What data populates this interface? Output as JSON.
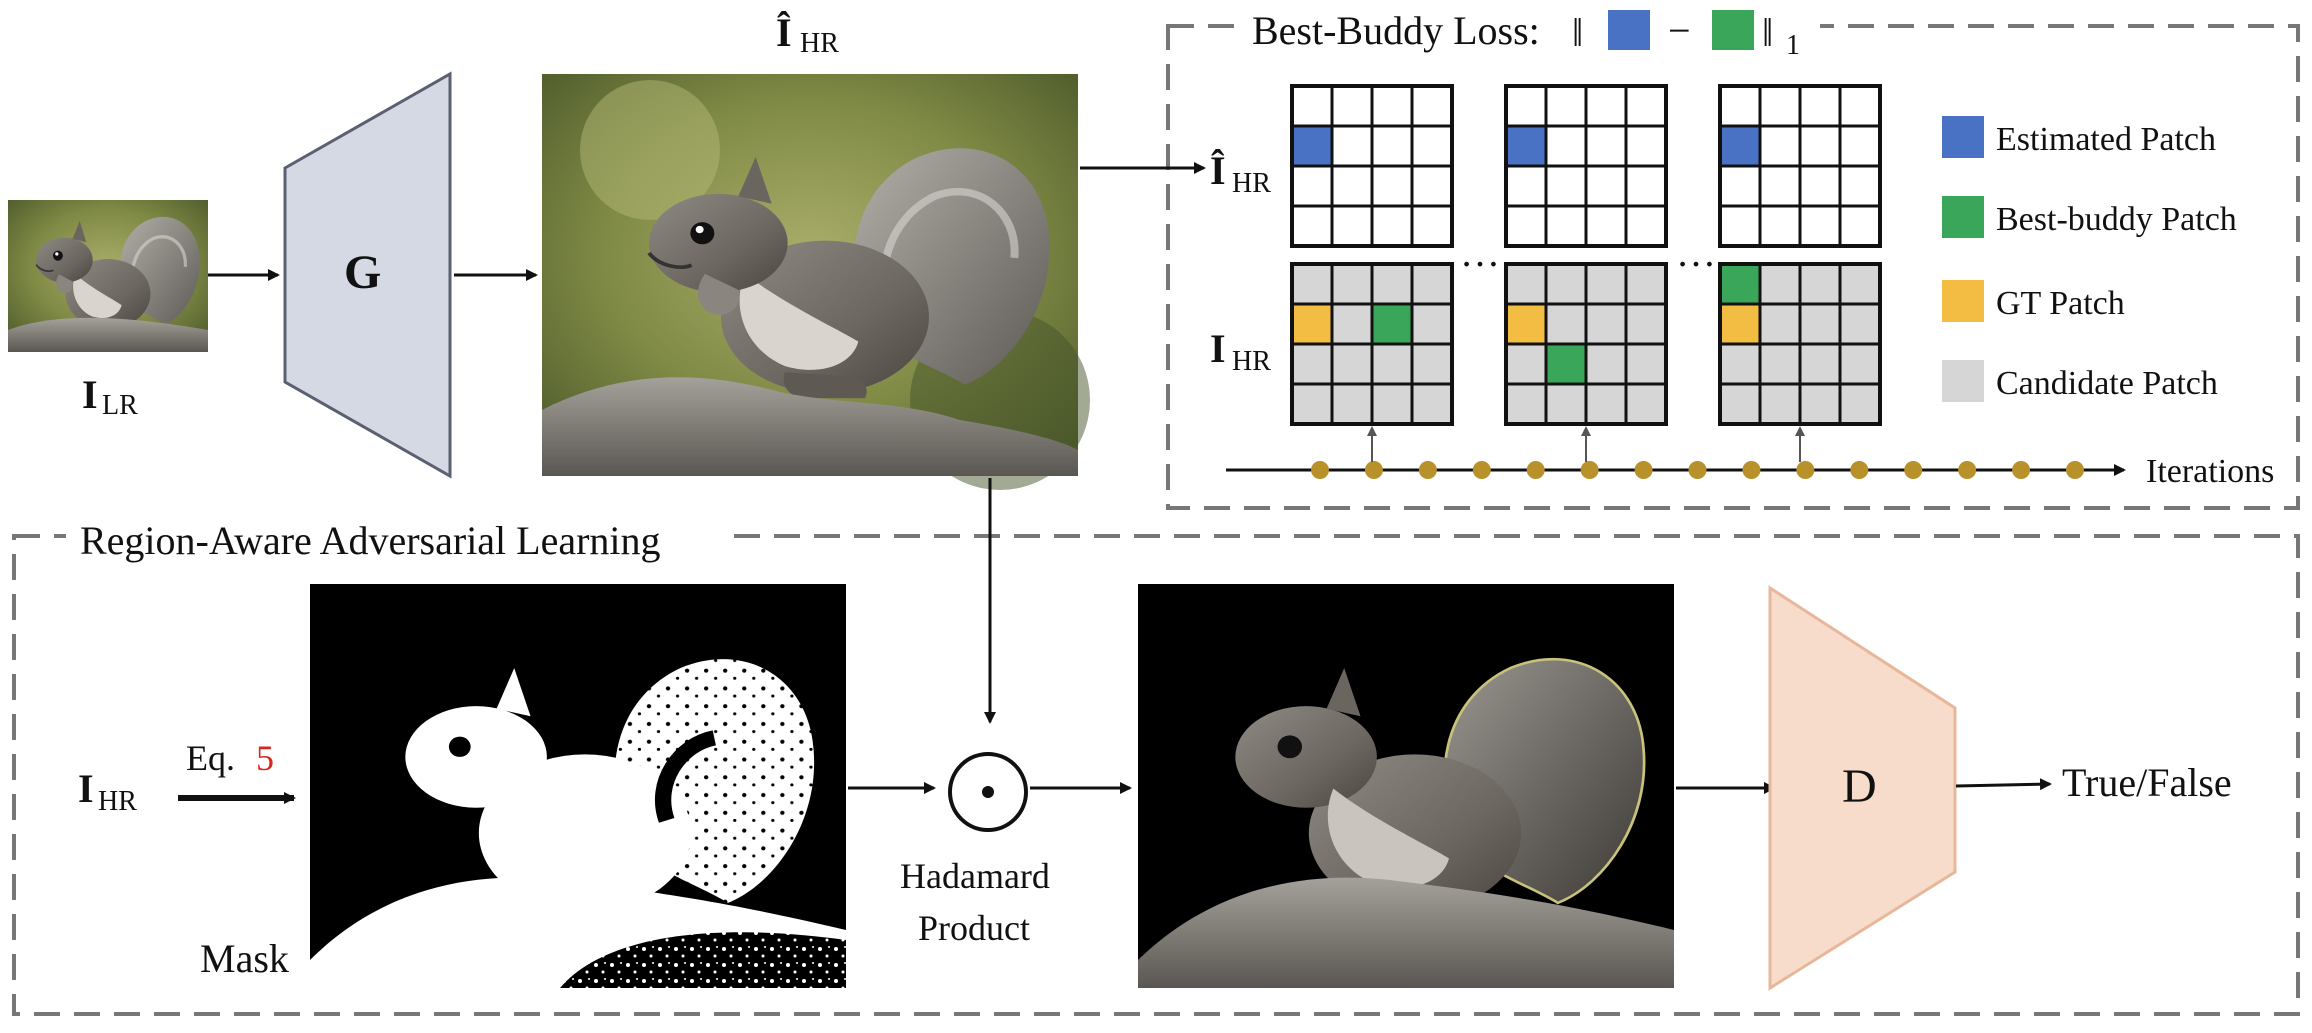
{
  "inputs": {
    "lr_label": "I",
    "lr_sub": "LR",
    "hr_hat_label": "Î",
    "hr_sub": "HR",
    "hr_label": "I"
  },
  "generator": {
    "label": "G"
  },
  "discriminator": {
    "label": "D",
    "output": "True/False"
  },
  "best_buddy": {
    "title_prefix": "Best-Buddy Loss:",
    "norm_open": "‖",
    "minus": "−",
    "norm_close": "‖",
    "norm_sub": "1",
    "row_top_label": "Î",
    "row_bottom_label": "I",
    "row_sub": "HR",
    "ellipsis": "…",
    "iterations_label": "Iterations",
    "grids": [
      {
        "estimated": [
          1,
          0
        ],
        "gt": [
          1,
          0
        ],
        "best_buddy": [
          [
            1,
            2
          ]
        ]
      },
      {
        "estimated": [
          1,
          0
        ],
        "gt": [
          1,
          0
        ],
        "best_buddy": [
          [
            2,
            1
          ]
        ]
      },
      {
        "estimated": [
          1,
          0
        ],
        "gt": [
          1,
          0
        ],
        "best_buddy": [
          [
            0,
            0
          ]
        ]
      }
    ],
    "iteration_dots": 15,
    "highlighted_dots": [
      1,
      5,
      9
    ]
  },
  "legend": [
    {
      "label": "Estimated Patch",
      "color": "#4a72c4"
    },
    {
      "label": "Best-buddy Patch",
      "color": "#3aa65a"
    },
    {
      "label": "GT Patch",
      "color": "#f2bd42"
    },
    {
      "label": "Candidate Patch",
      "color": "#d6d6d6"
    }
  ],
  "region_aware": {
    "title": "Region-Aware Adversarial Learning",
    "eq_prefix": "Eq.",
    "eq_number": "5",
    "mask_label": "Mask",
    "hadamard_line1": "Hadamard",
    "hadamard_line2": "Product"
  },
  "colors": {
    "dashed_border": "#777777",
    "generator_fill": "#d5d9e3",
    "discriminator_fill": "#f8dccb",
    "eq_number": "#d9261c",
    "iteration_dot": "#b8912a"
  }
}
